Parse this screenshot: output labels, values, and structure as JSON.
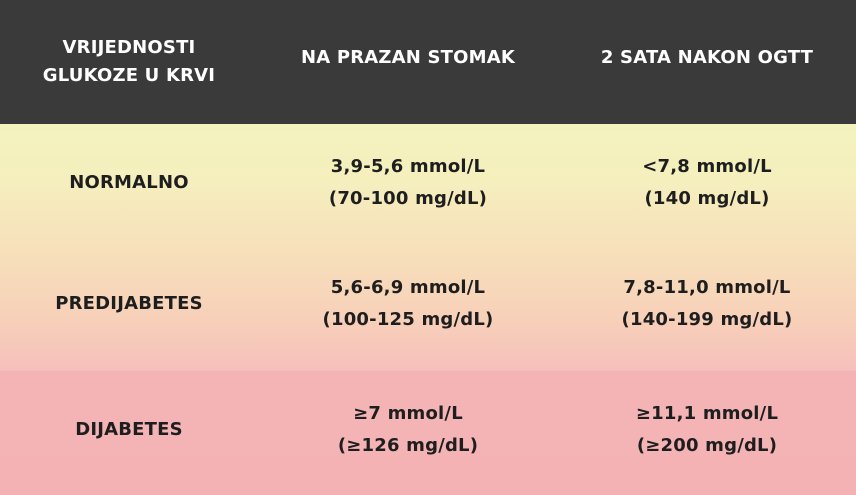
{
  "header": {
    "col1_line1": "VRIJEDNOSTI",
    "col1_line2": "GLUKOZE U KRVI",
    "col2": "NA PRAZAN STOMAK",
    "col3": "2 SATA NAKON OGTT"
  },
  "rows": [
    {
      "label": "NORMALNO",
      "fasting_line1": "3,9-5,6 mmol/L",
      "fasting_line2": "(70-100 mg/dL)",
      "ogtt_line1": "<7,8 mmol/L",
      "ogtt_line2": "(140 mg/dL)"
    },
    {
      "label": "PREDIJABETES",
      "fasting_line1": "5,6-6,9 mmol/L",
      "fasting_line2": "(100-125 mg/dL)",
      "ogtt_line1": "7,8-11,0 mmol/L",
      "ogtt_line2": "(140-199 mg/dL)"
    },
    {
      "label": "DIJABETES",
      "fasting_line1": "≥7 mmol/L",
      "fasting_line2": "(≥126 mg/dL)",
      "ogtt_line1": "≥11,1 mmol/L",
      "ogtt_line2": "(≥200 mg/dL)"
    }
  ],
  "colors": {
    "header_bg": "#3a3a3a",
    "header_text": "#ffffff",
    "body_text": "#1e1e1e",
    "gradient_top": "#e7f7bd",
    "gradient_bottom": "#f4b2b4"
  }
}
